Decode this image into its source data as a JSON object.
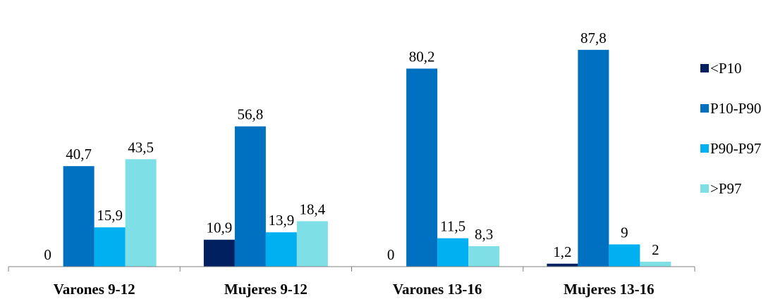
{
  "chart_data": {
    "type": "bar",
    "categories": [
      "Varones 9-12",
      "Mujeres 9-12",
      "Varones 13-16",
      "Mujeres 13-16"
    ],
    "series": [
      {
        "name": "<P10",
        "color": "#002060",
        "values": [
          0,
          10.9,
          0,
          1.2
        ],
        "labels": [
          "0",
          "10,9",
          "0",
          "1,2"
        ]
      },
      {
        "name": "P10-P90",
        "color": "#0070C0",
        "values": [
          40.7,
          56.8,
          80.2,
          87.8
        ],
        "labels": [
          "40,7",
          "56,8",
          "80,2",
          "87,8"
        ]
      },
      {
        "name": "P90-P97",
        "color": "#00B0F0",
        "values": [
          15.9,
          13.9,
          11.5,
          9
        ],
        "labels": [
          "15,9",
          "13,9",
          "11,5",
          "9"
        ]
      },
      {
        "name": ">P97",
        "color": "#7FDFE6",
        "values": [
          43.5,
          18.4,
          8.3,
          2
        ],
        "labels": [
          "43,5",
          "18,4",
          "8,3",
          "2"
        ]
      }
    ],
    "ylim": [
      0,
      100
    ],
    "grid": false,
    "legend_position": "right"
  }
}
